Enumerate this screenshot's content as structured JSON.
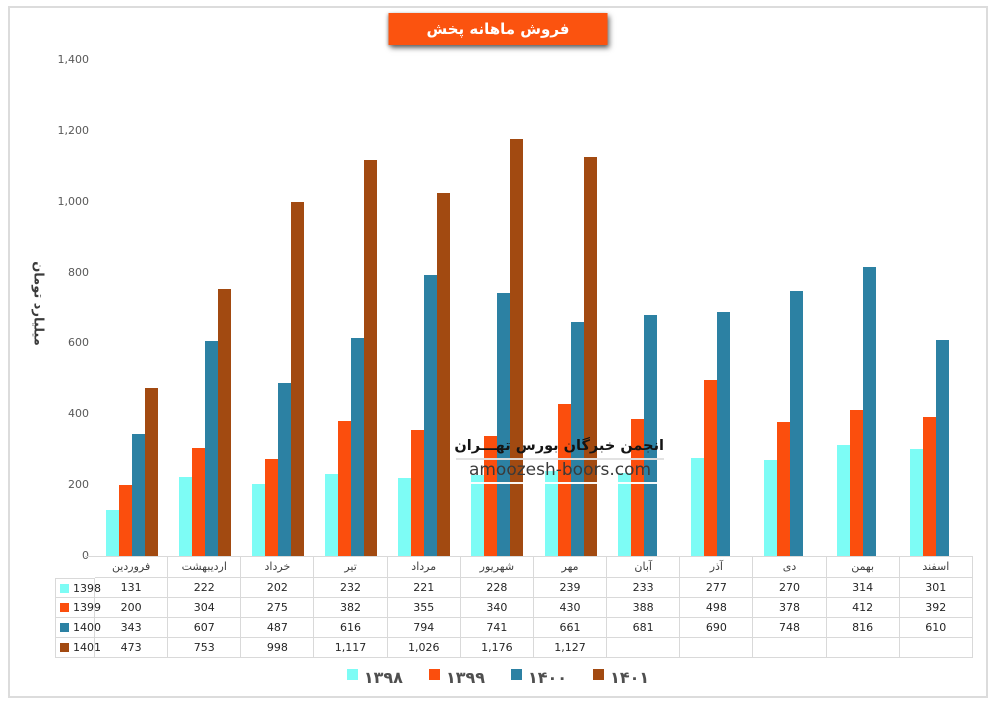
{
  "watermark": {
    "line1": "انجمن خبرگان بورس تهـــران",
    "line2": "amoozesh-boors.com"
  },
  "colors": {
    "title_bg": "#FB530F",
    "table_border": "#D9D9D9",
    "tick_text": "#595959"
  },
  "chart_data": {
    "type": "bar",
    "title": "فروش ماهانه پخش",
    "xlabel": "",
    "ylabel": "میلیارد تومان",
    "ylim": [
      0,
      1400
    ],
    "ytick_step": 200,
    "yticks": [
      "0",
      "200",
      "400",
      "600",
      "800",
      "1,000",
      "1,200",
      "1,400"
    ],
    "grid": false,
    "legend_position": "bottom",
    "data_table_shown": true,
    "categories": [
      "فروردین",
      "اردیبهشت",
      "خرداد",
      "تیر",
      "مرداد",
      "شهریور",
      "مهر",
      "آبان",
      "آذر",
      "دی",
      "بهمن",
      "اسفند"
    ],
    "series": [
      {
        "name": "1398",
        "legend_label": "۱۳۹۸",
        "color": "#7DFCF5",
        "values": [
          131,
          222,
          202,
          232,
          221,
          228,
          239,
          233,
          277,
          270,
          314,
          301
        ]
      },
      {
        "name": "1399",
        "legend_label": "۱۳۹۹",
        "color": "#FB4E0D",
        "values": [
          200,
          304,
          275,
          382,
          355,
          340,
          430,
          388,
          498,
          378,
          412,
          392
        ]
      },
      {
        "name": "1400",
        "legend_label": "۱۴۰۰",
        "color": "#2C81A3",
        "values": [
          343,
          607,
          487,
          616,
          794,
          741,
          661,
          681,
          690,
          748,
          816,
          610
        ]
      },
      {
        "name": "1401",
        "legend_label": "۱۴۰۱",
        "color": "#A24A11",
        "values": [
          473,
          753,
          998,
          1117,
          1026,
          1176,
          1127,
          null,
          null,
          null,
          null,
          null
        ]
      }
    ]
  }
}
